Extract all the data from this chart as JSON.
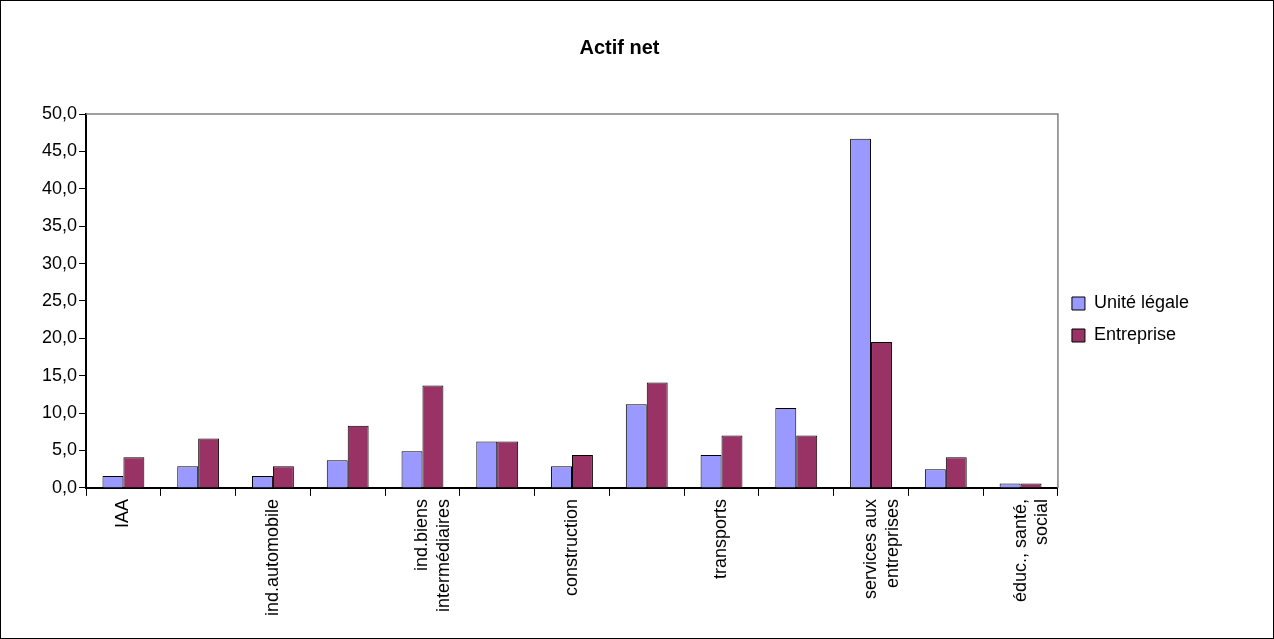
{
  "chart_data": {
    "type": "bar",
    "title": "Actif net",
    "categories": [
      "IAA",
      null,
      "ind.automobile",
      null,
      "ind.biens intermédiaires",
      null,
      "construction",
      null,
      "transports",
      null,
      "services aux entreprises",
      null,
      "éduc., santé, social"
    ],
    "series": [
      {
        "name": "Unité légale",
        "color": "#9999ff",
        "values": [
          1.6,
          2.9,
          1.6,
          3.7,
          4.9,
          6.2,
          2.9,
          11.2,
          4.4,
          10.7,
          46.7,
          2.5,
          0.6
        ]
      },
      {
        "name": "Entreprise",
        "color": "#993366",
        "values": [
          4.1,
          6.6,
          2.9,
          8.3,
          13.7,
          6.2,
          4.4,
          14.1,
          7.0,
          7.0,
          19.5,
          4.1,
          0.6
        ]
      }
    ],
    "ylim": [
      0,
      50
    ],
    "yticks": [
      {
        "value": 0,
        "label": "0,0"
      },
      {
        "value": 5,
        "label": "5,0"
      },
      {
        "value": 10,
        "label": "10,0"
      },
      {
        "value": 15,
        "label": "15,0"
      },
      {
        "value": 20,
        "label": "20,0"
      },
      {
        "value": 25,
        "label": "25,0"
      },
      {
        "value": 30,
        "label": "30,0"
      },
      {
        "value": 35,
        "label": "35,0"
      },
      {
        "value": 40,
        "label": "40,0"
      },
      {
        "value": 45,
        "label": "45,0"
      },
      {
        "value": 50,
        "label": "50,0"
      }
    ],
    "grid": false,
    "legend": "right"
  }
}
